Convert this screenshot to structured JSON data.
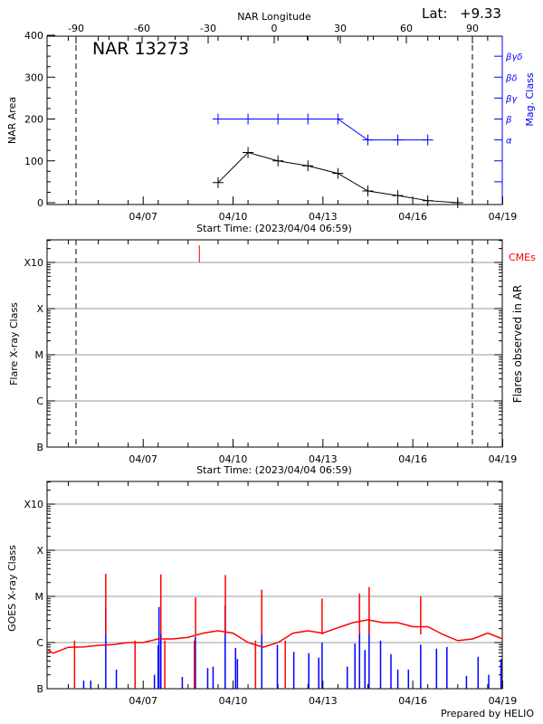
{
  "chart_data": [
    {
      "type": "line",
      "title": "NAR 13273",
      "latitude_label": "Lat:",
      "latitude_value": "+9.33",
      "xlabel": "Start Time: (2023/04/04 06:59)",
      "x2label": "NAR Longitude",
      "ylabel": "NAR Area",
      "y2label": "Mag. Class",
      "start_time": "2023/04/04 06:59",
      "xlim_days": [
        "04/04 06:59",
        "04/19 14:00"
      ],
      "x_tick_labels": [
        "04/07",
        "04/10",
        "04/13",
        "04/16",
        "04/19"
      ],
      "x2_ticks": [
        -90,
        -60,
        -30,
        0,
        30,
        60,
        90
      ],
      "x2_tick_labels": [
        "-90",
        "-60",
        "-30",
        "0",
        "30",
        "60",
        "90"
      ],
      "ylim": [
        0,
        400
      ],
      "y_ticks": [
        0,
        100,
        200,
        300,
        400
      ],
      "y_tick_labels": [
        "0",
        "100",
        "200",
        "300",
        "400"
      ],
      "y2_ticks": [
        50,
        100,
        150,
        200,
        250,
        300,
        350
      ],
      "y2_tick_labels": [
        "",
        "",
        "α",
        "β",
        "βγ",
        "βδ",
        "βγδ"
      ],
      "limb_longitudes": [
        -90,
        90
      ],
      "series": [
        {
          "color": "#000000",
          "x": [
            "04/10 00:00",
            "04/11 00:00",
            "04/12 00:00",
            "04/13 00:00",
            "04/14 00:00",
            "04/15 00:00",
            "04/16 00:00",
            "04/17 00:00",
            "04/18 00:00"
          ],
          "values": [
            48,
            120,
            100,
            88,
            70,
            28,
            17,
            5,
            0
          ]
        },
        {
          "color": "#0000ff",
          "axis": "right",
          "x": [
            "04/10 00:00",
            "04/11 00:00",
            "04/12 00:00",
            "04/13 00:00",
            "04/14 00:00",
            "04/15 00:00",
            "04/16 00:00",
            "04/17 00:00"
          ],
          "values": [
            "β",
            "β",
            "β",
            "β",
            "β",
            "α",
            "α",
            "α"
          ]
        }
      ]
    },
    {
      "type": "scatter",
      "xlabel": "Start Time: (2023/04/04 06:59)",
      "ylabel": "Flare X-ray Class",
      "y2label": "Flares observed in AR",
      "legend": "CMEs",
      "legend_color": "#ff0000",
      "yscale": "log",
      "ylim_flux": [
        1e-07,
        0.0032
      ],
      "y_tick_labels": [
        "B",
        "C",
        "M",
        "X",
        "X10"
      ],
      "x_tick_labels": [
        "04/07",
        "04/10",
        "04/13",
        "04/16",
        "04/19"
      ],
      "grid": true,
      "cmes": [
        {
          "time": "04/09 09:00"
        }
      ]
    },
    {
      "type": "line",
      "ylabel": "GOES X-ray Class",
      "yscale": "log",
      "ylim_flux": [
        1e-07,
        0.0032
      ],
      "y_tick_labels": [
        "B",
        "C",
        "M",
        "X",
        "X10"
      ],
      "x_tick_labels": [
        "04/07",
        "04/10",
        "04/13",
        "04/16",
        "04/19"
      ],
      "grid": true,
      "footer": "Prepared by HELIO",
      "series": [
        {
          "color": "#ff0000",
          "x": [
            "04/04 07:00",
            "04/04 12:00",
            "04/05 00:00",
            "04/05 12:00",
            "04/06 00:00",
            "04/06 12:00",
            "04/07 00:00",
            "04/07 12:00",
            "04/08 00:00",
            "04/08 12:00",
            "04/09 00:00",
            "04/09 12:00",
            "04/10 00:00",
            "04/10 12:00",
            "04/11 00:00",
            "04/11 12:00",
            "04/12 00:00",
            "04/12 12:00",
            "04/13 00:00",
            "04/13 12:00",
            "04/14 00:00",
            "04/14 12:00",
            "04/15 00:00",
            "04/15 12:00",
            "04/16 00:00",
            "04/16 12:00",
            "04/17 00:00",
            "04/17 12:00",
            "04/18 00:00",
            "04/18 12:00",
            "04/19 00:00",
            "04/19 12:00"
          ],
          "values": [
            7e-07,
            5.9e-07,
            7.9e-07,
            8e-07,
            8.7e-07,
            9e-07,
            1e-06,
            1e-06,
            1.2e-06,
            1.2e-06,
            1.3e-06,
            1.6e-06,
            1.8e-06,
            1.6e-06,
            1e-06,
            7.9e-07,
            1e-06,
            1.6e-06,
            1.8e-06,
            1.6e-06,
            2.1e-06,
            2.7e-06,
            3.1e-06,
            2.7e-06,
            2.7e-06,
            2.2e-06,
            2.2e-06,
            1.5e-06,
            1.1e-06,
            1.2e-06,
            1.6e-06,
            1.2e-06
          ],
          "peaks": [
            {
              "time": "04/06 06:00",
              "flux": 3.1e-05
            },
            {
              "time": "04/08 02:10",
              "flux": 3e-05
            },
            {
              "time": "04/09 06:00",
              "flux": 9.5e-06
            },
            {
              "time": "04/10 05:50",
              "flux": 2.9e-05
            },
            {
              "time": "04/11 11:00",
              "flux": 1.4e-05
            },
            {
              "time": "04/13 11:20",
              "flux": 9e-06
            },
            {
              "time": "04/14 17:20",
              "flux": 1.15e-05
            },
            {
              "time": "04/15 01:00",
              "flux": 1.6e-05
            },
            {
              "time": "04/16 18:20",
              "flux": 1e-05
            }
          ],
          "data_gaps": [
            "04/05 05:00",
            "04/07 05:30",
            "04/08 05:20",
            "04/09 05:00",
            "04/11 06:00",
            "04/12 05:50"
          ]
        },
        {
          "color": "#0000ff",
          "spikes": [
            {
              "time": "04/05 12:20",
              "flux": 1.5e-07
            },
            {
              "time": "04/05 18:00",
              "flux": 1.5e-07
            },
            {
              "time": "04/06 06:00",
              "flux": 5.9e-06
            },
            {
              "time": "04/06 14:30",
              "flux": 2.6e-07
            },
            {
              "time": "04/07 21:00",
              "flux": 2e-07
            },
            {
              "time": "04/08 00:00",
              "flux": 8.7e-07
            },
            {
              "time": "04/08 00:40",
              "flux": 5.9e-06
            },
            {
              "time": "04/08 02:10",
              "flux": 3.9e-06
            },
            {
              "time": "04/08 19:20",
              "flux": 1.8e-07
            },
            {
              "time": "04/09 05:50",
              "flux": 1.35e-06
            },
            {
              "time": "04/09 15:40",
              "flux": 2.8e-07
            },
            {
              "time": "04/09 20:00",
              "flux": 3e-07
            },
            {
              "time": "04/10 05:40",
              "flux": 6.3e-06
            },
            {
              "time": "04/10 14:00",
              "flux": 7.6e-07
            },
            {
              "time": "04/10 15:30",
              "flux": 4.4e-07
            },
            {
              "time": "04/11 11:00",
              "flux": 2.1e-06
            },
            {
              "time": "04/11 23:30",
              "flux": 8.9e-07
            },
            {
              "time": "04/12 12:40",
              "flux": 6.3e-07
            },
            {
              "time": "04/13 00:40",
              "flux": 5.9e-07
            },
            {
              "time": "04/13 08:40",
              "flux": 4.7e-07
            },
            {
              "time": "04/13 11:20",
              "flux": 1e-06
            },
            {
              "time": "04/14 07:30",
              "flux": 3e-07
            },
            {
              "time": "04/14 13:40",
              "flux": 9.5e-07
            },
            {
              "time": "04/14 17:20",
              "flux": 1.7e-06
            },
            {
              "time": "04/14 21:40",
              "flux": 6.9e-07
            },
            {
              "time": "04/15 01:00",
              "flux": 3.1e-06
            },
            {
              "time": "04/15 10:10",
              "flux": 1.1e-06
            },
            {
              "time": "04/15 18:30",
              "flux": 5.6e-07
            },
            {
              "time": "04/16 00:00",
              "flux": 2.6e-07
            },
            {
              "time": "04/16 08:30",
              "flux": 2.6e-07
            },
            {
              "time": "04/16 18:20",
              "flux": 9e-07
            },
            {
              "time": "04/17 07:00",
              "flux": 7.4e-07
            },
            {
              "time": "04/17 15:20",
              "flux": 8e-07
            },
            {
              "time": "04/18 07:00",
              "flux": 1.9e-07
            },
            {
              "time": "04/18 16:20",
              "flux": 4.9e-07
            },
            {
              "time": "04/19 00:50",
              "flux": 2e-07
            },
            {
              "time": "04/19 10:40",
              "flux": 4.4e-07
            }
          ]
        }
      ]
    }
  ]
}
